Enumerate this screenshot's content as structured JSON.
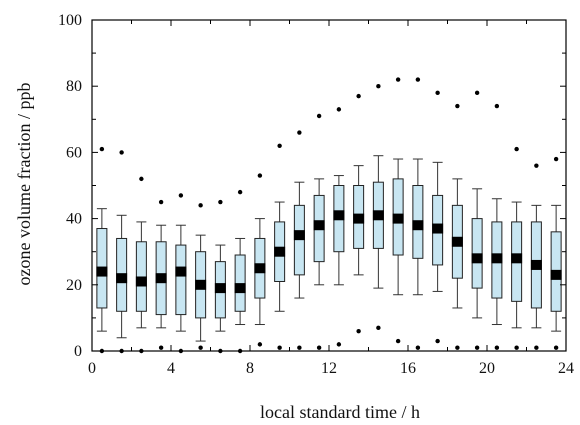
{
  "chart_data": {
    "type": "box",
    "title": "",
    "xlabel": "local standard time / h",
    "ylabel": "ozone volume fraction / ppb",
    "xlim": [
      0,
      24
    ],
    "ylim": [
      0,
      100
    ],
    "xticks": [
      "0",
      "4",
      "8",
      "12",
      "16",
      "20",
      "24"
    ],
    "yticks": [
      "0",
      "20",
      "40",
      "60",
      "80",
      "100"
    ],
    "grid": false,
    "box_color": "#c8e6f2",
    "series": [
      {
        "hour": 0.5,
        "whisker_low": 6,
        "q1": 13,
        "median": 24,
        "q3": 37,
        "whisker_high": 43,
        "outlier_high": 61,
        "outlier_low": 0
      },
      {
        "hour": 1.5,
        "whisker_low": 4,
        "q1": 12,
        "median": 22,
        "q3": 34,
        "whisker_high": 41,
        "outlier_high": 60,
        "outlier_low": 0
      },
      {
        "hour": 2.5,
        "whisker_low": 7,
        "q1": 12,
        "median": 21,
        "q3": 33,
        "whisker_high": 39,
        "outlier_high": 52,
        "outlier_low": 0
      },
      {
        "hour": 3.5,
        "whisker_low": 7,
        "q1": 11,
        "median": 22,
        "q3": 33,
        "whisker_high": 38,
        "outlier_high": 45,
        "outlier_low": 1
      },
      {
        "hour": 4.5,
        "whisker_low": 6,
        "q1": 11,
        "median": 24,
        "q3": 32,
        "whisker_high": 38,
        "outlier_high": 47,
        "outlier_low": 0
      },
      {
        "hour": 5.5,
        "whisker_low": 3,
        "q1": 10,
        "median": 20,
        "q3": 30,
        "whisker_high": 35,
        "outlier_high": 44,
        "outlier_low": 1
      },
      {
        "hour": 6.5,
        "whisker_low": 6,
        "q1": 10,
        "median": 19,
        "q3": 27,
        "whisker_high": 32,
        "outlier_high": 45,
        "outlier_low": 0
      },
      {
        "hour": 7.5,
        "whisker_low": 8,
        "q1": 12,
        "median": 19,
        "q3": 29,
        "whisker_high": 34,
        "outlier_high": 48,
        "outlier_low": 0
      },
      {
        "hour": 8.5,
        "whisker_low": 8,
        "q1": 16,
        "median": 25,
        "q3": 34,
        "whisker_high": 40,
        "outlier_high": 53,
        "outlier_low": 2
      },
      {
        "hour": 9.5,
        "whisker_low": 12,
        "q1": 21,
        "median": 30,
        "q3": 39,
        "whisker_high": 45,
        "outlier_high": 62,
        "outlier_low": 1
      },
      {
        "hour": 10.5,
        "whisker_low": 16,
        "q1": 23,
        "median": 35,
        "q3": 44,
        "whisker_high": 51,
        "outlier_high": 66,
        "outlier_low": 1
      },
      {
        "hour": 11.5,
        "whisker_low": 20,
        "q1": 27,
        "median": 38,
        "q3": 47,
        "whisker_high": 52,
        "outlier_high": 71,
        "outlier_low": 1
      },
      {
        "hour": 12.5,
        "whisker_low": 20,
        "q1": 30,
        "median": 41,
        "q3": 50,
        "whisker_high": 53,
        "outlier_high": 73,
        "outlier_low": 2
      },
      {
        "hour": 13.5,
        "whisker_low": 23,
        "q1": 31,
        "median": 40,
        "q3": 50,
        "whisker_high": 56,
        "outlier_high": 77,
        "outlier_low": 6
      },
      {
        "hour": 14.5,
        "whisker_low": 19,
        "q1": 31,
        "median": 41,
        "q3": 51,
        "whisker_high": 59,
        "outlier_high": 80,
        "outlier_low": 7
      },
      {
        "hour": 15.5,
        "whisker_low": 17,
        "q1": 29,
        "median": 40,
        "q3": 52,
        "whisker_high": 58,
        "outlier_high": 82,
        "outlier_low": 3
      },
      {
        "hour": 16.5,
        "whisker_low": 17,
        "q1": 28,
        "median": 38,
        "q3": 50,
        "whisker_high": 58,
        "outlier_high": 82,
        "outlier_low": 1
      },
      {
        "hour": 17.5,
        "whisker_low": 18,
        "q1": 26,
        "median": 37,
        "q3": 47,
        "whisker_high": 57,
        "outlier_high": 78,
        "outlier_low": 3
      },
      {
        "hour": 18.5,
        "whisker_low": 13,
        "q1": 22,
        "median": 33,
        "q3": 44,
        "whisker_high": 52,
        "outlier_high": 74,
        "outlier_low": 1
      },
      {
        "hour": 19.5,
        "whisker_low": 10,
        "q1": 19,
        "median": 28,
        "q3": 40,
        "whisker_high": 49,
        "outlier_high": 78,
        "outlier_low": 1
      },
      {
        "hour": 20.5,
        "whisker_low": 8,
        "q1": 16,
        "median": 28,
        "q3": 39,
        "whisker_high": 46,
        "outlier_high": 74,
        "outlier_low": 1
      },
      {
        "hour": 21.5,
        "whisker_low": 7,
        "q1": 15,
        "median": 28,
        "q3": 39,
        "whisker_high": 45,
        "outlier_high": 61,
        "outlier_low": 1
      },
      {
        "hour": 22.5,
        "whisker_low": 7,
        "q1": 13,
        "median": 26,
        "q3": 39,
        "whisker_high": 44,
        "outlier_high": 56,
        "outlier_low": 1
      },
      {
        "hour": 23.5,
        "whisker_low": 6,
        "q1": 12,
        "median": 23,
        "q3": 36,
        "whisker_high": 44,
        "outlier_high": 58,
        "outlier_low": 1
      }
    ]
  }
}
